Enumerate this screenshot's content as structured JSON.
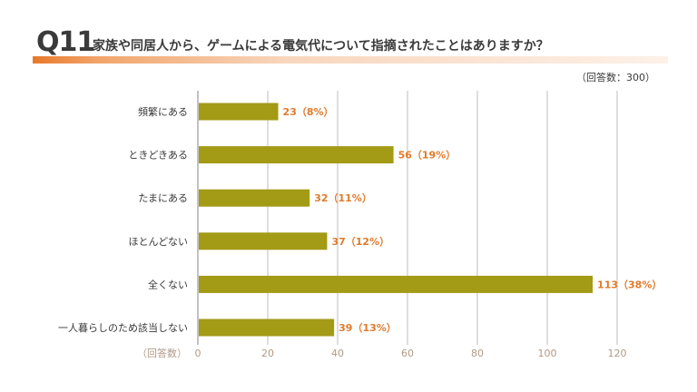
{
  "header": {
    "q_number": "Q11",
    "question": "家族や同居人から、ゲームによる電気代について指摘されたことはありますか？",
    "respondents": "（回答数：300）"
  },
  "colors": {
    "bar": "#a39a16",
    "accent": "#e8782a",
    "value_label": "#e07b2c",
    "grid": "#d4d4d4"
  },
  "chart_data": {
    "type": "bar",
    "orientation": "horizontal",
    "categories": [
      "頻繁にある",
      "ときどきある",
      "たまにある",
      "ほとんどない",
      "全くない",
      "一人暮らしのため該当しない"
    ],
    "values": [
      23,
      56,
      32,
      37,
      113,
      39
    ],
    "value_labels": [
      "23（8%）",
      "56（19%）",
      "32（11%）",
      "37（12%）",
      "113（38%）",
      "39（13%）"
    ],
    "xlim": [
      0,
      120
    ],
    "xticks": [
      0,
      20,
      40,
      60,
      80,
      100,
      120
    ],
    "xlabel": "（回答数）",
    "grid": true
  }
}
